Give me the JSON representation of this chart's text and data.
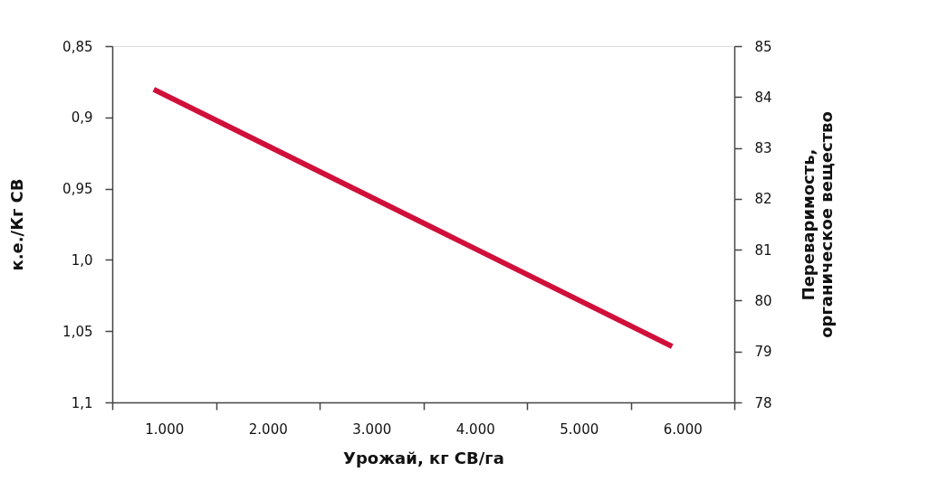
{
  "chart_data": {
    "type": "line",
    "xlabel": "Урожай, кг СВ/га",
    "ylabel": "к.е./Кг СВ",
    "y2label": "Переваримость,\nорганическое вещество",
    "x": [
      900,
      5900
    ],
    "series": [
      {
        "color": "#d0103a",
        "values": [
          84.15,
          79.1
        ],
        "axis": "y2"
      }
    ],
    "xlim": [
      500,
      6500
    ],
    "xticks": [
      {
        "value": 500,
        "label": null
      },
      {
        "value": 1000,
        "label": "1.000"
      },
      {
        "value": 1500,
        "label": null
      },
      {
        "value": 2000,
        "label": "2.000"
      },
      {
        "value": 2500,
        "label": null
      },
      {
        "value": 3000,
        "label": "3.000"
      },
      {
        "value": 3500,
        "label": null
      },
      {
        "value": 4000,
        "label": "4.000"
      },
      {
        "value": 4500,
        "label": null
      },
      {
        "value": 5000,
        "label": "5.000"
      },
      {
        "value": 5500,
        "label": null
      },
      {
        "value": 6000,
        "label": "6.000"
      },
      {
        "value": 6500,
        "label": null
      }
    ],
    "ylim": [
      1.1,
      0.85
    ],
    "yticks": [
      {
        "value": 0.85,
        "label": "0,85"
      },
      {
        "value": 0.9,
        "label": "0,9"
      },
      {
        "value": 0.95,
        "label": "0,95"
      },
      {
        "value": 1.0,
        "label": "1,0"
      },
      {
        "value": 1.05,
        "label": "1,05"
      },
      {
        "value": 1.1,
        "label": "1,1"
      }
    ],
    "y2lim": [
      78,
      85
    ],
    "y2ticks": [
      78,
      79,
      80,
      81,
      82,
      83,
      84,
      85
    ],
    "grid": false,
    "line_style": "solid",
    "marker": "none"
  }
}
